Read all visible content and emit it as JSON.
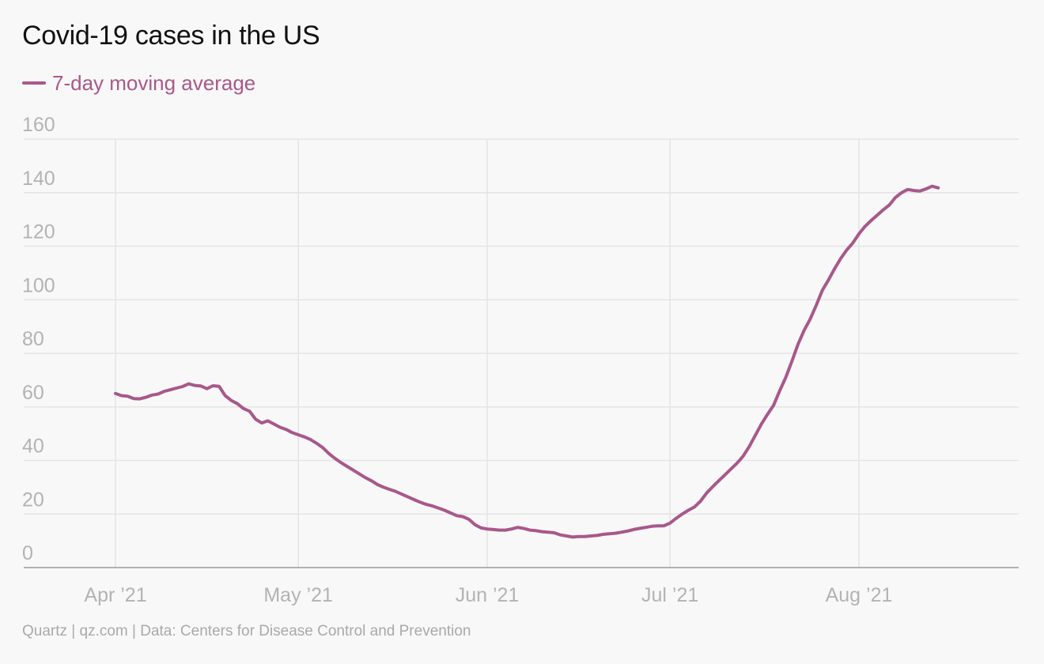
{
  "title": "Covid-19 cases in the US",
  "legend": {
    "label": "7-day moving average",
    "color": "#a8588a"
  },
  "footer": "Quartz | qz.com | Data: Centers for Disease Control and Prevention",
  "colors": {
    "series": "#a8588a",
    "grid": "#e4e4e4",
    "axis": "#9a9a9a",
    "tick_text": "#b3b3b3",
    "background": "#f8f8f8"
  },
  "chart_data": {
    "type": "line",
    "title": "Covid-19 cases in the US",
    "xlabel": "",
    "ylabel": "",
    "ylim": [
      0,
      160
    ],
    "xlim": [
      "2021-03-31",
      "2021-08-28"
    ],
    "grid": true,
    "legend_position": "top-left",
    "yticks": [
      0,
      20,
      40,
      60,
      80,
      100,
      120,
      140,
      160
    ],
    "xticks": [
      {
        "date": "2021-04-01",
        "label": "Apr ’21"
      },
      {
        "date": "2021-05-01",
        "label": "May ’21"
      },
      {
        "date": "2021-06-01",
        "label": "Jun ’21"
      },
      {
        "date": "2021-07-01",
        "label": "Jul ’21"
      },
      {
        "date": "2021-08-01",
        "label": "Aug ’21"
      }
    ],
    "series": [
      {
        "name": "7-day moving average",
        "color": "#a8588a",
        "points": [
          [
            "2021-04-01",
            65.0
          ],
          [
            "2021-04-02",
            64.2
          ],
          [
            "2021-04-03",
            64.0
          ],
          [
            "2021-04-04",
            63.1
          ],
          [
            "2021-04-05",
            63.0
          ],
          [
            "2021-04-06",
            63.6
          ],
          [
            "2021-04-07",
            64.4
          ],
          [
            "2021-04-08",
            64.8
          ],
          [
            "2021-04-09",
            65.8
          ],
          [
            "2021-04-10",
            66.4
          ],
          [
            "2021-04-11",
            67.0
          ],
          [
            "2021-04-12",
            67.6
          ],
          [
            "2021-04-13",
            68.6
          ],
          [
            "2021-04-14",
            68.0
          ],
          [
            "2021-04-15",
            67.8
          ],
          [
            "2021-04-16",
            66.8
          ],
          [
            "2021-04-17",
            67.9
          ],
          [
            "2021-04-18",
            67.7
          ],
          [
            "2021-04-19",
            64.2
          ],
          [
            "2021-04-20",
            62.4
          ],
          [
            "2021-04-21",
            61.2
          ],
          [
            "2021-04-22",
            59.4
          ],
          [
            "2021-04-23",
            58.4
          ],
          [
            "2021-04-24",
            55.4
          ],
          [
            "2021-04-25",
            54.0
          ],
          [
            "2021-04-26",
            54.8
          ],
          [
            "2021-04-27",
            53.6
          ],
          [
            "2021-04-28",
            52.4
          ],
          [
            "2021-04-29",
            51.6
          ],
          [
            "2021-04-30",
            50.4
          ],
          [
            "2021-05-01",
            49.6
          ],
          [
            "2021-05-02",
            48.8
          ],
          [
            "2021-05-03",
            47.8
          ],
          [
            "2021-05-04",
            46.4
          ],
          [
            "2021-05-05",
            44.8
          ],
          [
            "2021-05-06",
            42.6
          ],
          [
            "2021-05-07",
            40.8
          ],
          [
            "2021-05-08",
            39.2
          ],
          [
            "2021-05-09",
            37.8
          ],
          [
            "2021-05-10",
            36.4
          ],
          [
            "2021-05-11",
            35.0
          ],
          [
            "2021-05-12",
            33.6
          ],
          [
            "2021-05-13",
            32.4
          ],
          [
            "2021-05-14",
            31.0
          ],
          [
            "2021-05-15",
            30.0
          ],
          [
            "2021-05-16",
            29.2
          ],
          [
            "2021-05-17",
            28.4
          ],
          [
            "2021-05-18",
            27.4
          ],
          [
            "2021-05-19",
            26.4
          ],
          [
            "2021-05-20",
            25.4
          ],
          [
            "2021-05-21",
            24.4
          ],
          [
            "2021-05-22",
            23.6
          ],
          [
            "2021-05-23",
            23.0
          ],
          [
            "2021-05-24",
            22.2
          ],
          [
            "2021-05-25",
            21.4
          ],
          [
            "2021-05-26",
            20.4
          ],
          [
            "2021-05-27",
            19.4
          ],
          [
            "2021-05-28",
            19.0
          ],
          [
            "2021-05-29",
            18.0
          ],
          [
            "2021-05-30",
            16.0
          ],
          [
            "2021-05-31",
            14.8
          ],
          [
            "2021-06-01",
            14.4
          ],
          [
            "2021-06-02",
            14.2
          ],
          [
            "2021-06-03",
            14.0
          ],
          [
            "2021-06-04",
            14.0
          ],
          [
            "2021-06-05",
            14.4
          ],
          [
            "2021-06-06",
            15.0
          ],
          [
            "2021-06-07",
            14.6
          ],
          [
            "2021-06-08",
            14.0
          ],
          [
            "2021-06-09",
            13.8
          ],
          [
            "2021-06-10",
            13.4
          ],
          [
            "2021-06-11",
            13.2
          ],
          [
            "2021-06-12",
            13.0
          ],
          [
            "2021-06-13",
            12.2
          ],
          [
            "2021-06-14",
            11.8
          ],
          [
            "2021-06-15",
            11.4
          ],
          [
            "2021-06-16",
            11.6
          ],
          [
            "2021-06-17",
            11.6
          ],
          [
            "2021-06-18",
            11.8
          ],
          [
            "2021-06-19",
            12.0
          ],
          [
            "2021-06-20",
            12.4
          ],
          [
            "2021-06-21",
            12.6
          ],
          [
            "2021-06-22",
            12.8
          ],
          [
            "2021-06-23",
            13.2
          ],
          [
            "2021-06-24",
            13.6
          ],
          [
            "2021-06-25",
            14.2
          ],
          [
            "2021-06-26",
            14.6
          ],
          [
            "2021-06-27",
            15.0
          ],
          [
            "2021-06-28",
            15.4
          ],
          [
            "2021-06-29",
            15.6
          ],
          [
            "2021-06-30",
            15.6
          ],
          [
            "2021-07-01",
            16.6
          ],
          [
            "2021-07-02",
            18.4
          ],
          [
            "2021-07-03",
            20.0
          ],
          [
            "2021-07-04",
            21.4
          ],
          [
            "2021-07-05",
            22.6
          ],
          [
            "2021-07-06",
            24.8
          ],
          [
            "2021-07-07",
            27.8
          ],
          [
            "2021-07-08",
            30.2
          ],
          [
            "2021-07-09",
            32.4
          ],
          [
            "2021-07-10",
            34.6
          ],
          [
            "2021-07-11",
            36.8
          ],
          [
            "2021-07-12",
            39.0
          ],
          [
            "2021-07-13",
            41.6
          ],
          [
            "2021-07-14",
            45.2
          ],
          [
            "2021-07-15",
            49.4
          ],
          [
            "2021-07-16",
            53.6
          ],
          [
            "2021-07-17",
            57.2
          ],
          [
            "2021-07-18",
            60.6
          ],
          [
            "2021-07-19",
            66.0
          ],
          [
            "2021-07-20",
            71.0
          ],
          [
            "2021-07-21",
            77.0
          ],
          [
            "2021-07-22",
            83.4
          ],
          [
            "2021-07-23",
            88.6
          ],
          [
            "2021-07-24",
            92.8
          ],
          [
            "2021-07-25",
            98.0
          ],
          [
            "2021-07-26",
            103.6
          ],
          [
            "2021-07-27",
            107.4
          ],
          [
            "2021-07-28",
            111.6
          ],
          [
            "2021-07-29",
            115.4
          ],
          [
            "2021-07-30",
            118.6
          ],
          [
            "2021-07-31",
            121.2
          ],
          [
            "2021-08-01",
            124.6
          ],
          [
            "2021-08-02",
            127.4
          ],
          [
            "2021-08-03",
            129.6
          ],
          [
            "2021-08-04",
            131.6
          ],
          [
            "2021-08-05",
            133.6
          ],
          [
            "2021-08-06",
            135.4
          ],
          [
            "2021-08-07",
            138.2
          ],
          [
            "2021-08-08",
            140.0
          ],
          [
            "2021-08-09",
            141.2
          ],
          [
            "2021-08-10",
            140.8
          ],
          [
            "2021-08-11",
            140.6
          ],
          [
            "2021-08-12",
            141.4
          ],
          [
            "2021-08-13",
            142.4
          ],
          [
            "2021-08-14",
            141.8
          ]
        ]
      }
    ]
  }
}
